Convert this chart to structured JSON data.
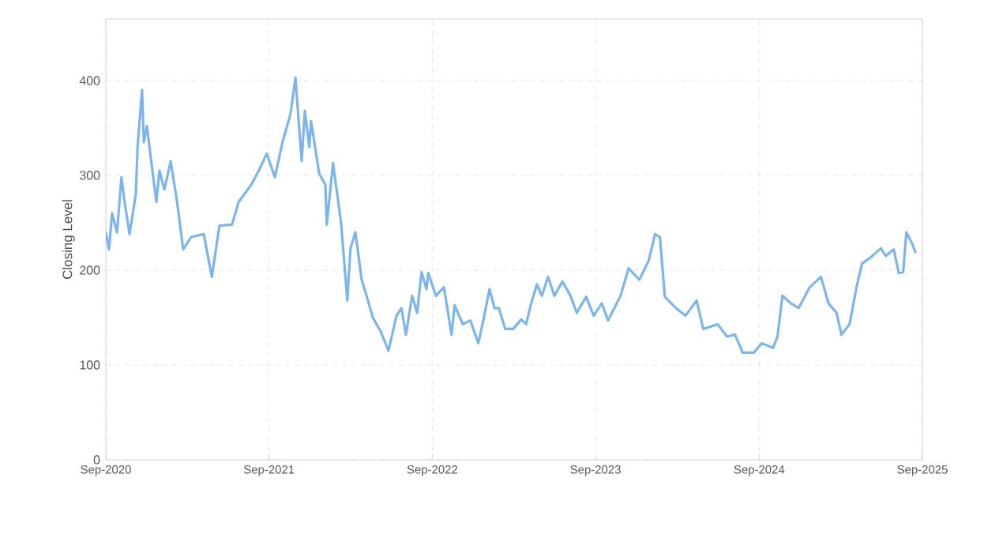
{
  "chart_data": {
    "type": "line",
    "ylabel": "Closing Level",
    "xlim": [
      "2020-09-01",
      "2025-09-01"
    ],
    "ylim": [
      0,
      465
    ],
    "xticks": [
      {
        "value": "2020-09-01",
        "label": "Sep-2020"
      },
      {
        "value": "2021-09-01",
        "label": "Sep-2021"
      },
      {
        "value": "2022-09-01",
        "label": "Sep-2022"
      },
      {
        "value": "2023-09-01",
        "label": "Sep-2023"
      },
      {
        "value": "2024-09-01",
        "label": "Sep-2024"
      },
      {
        "value": "2025-09-01",
        "label": "Sep-2025"
      }
    ],
    "yticks": [
      0,
      100,
      200,
      300,
      400
    ],
    "grid": true,
    "marker": "none",
    "line_style": "solid",
    "x": [
      "2020-09-01",
      "2020-09-08",
      "2020-09-15",
      "2020-09-26",
      "2020-10-06",
      "2020-10-13",
      "2020-10-24",
      "2020-11-07",
      "2020-11-11",
      "2020-11-21",
      "2020-11-25",
      "2020-12-02",
      "2020-12-12",
      "2020-12-23",
      "2020-12-30",
      "2021-01-10",
      "2021-01-24",
      "2021-02-07",
      "2021-02-21",
      "2021-03-11",
      "2021-04-08",
      "2021-04-26",
      "2021-05-13",
      "2021-06-10",
      "2021-06-25",
      "2021-07-23",
      "2021-08-09",
      "2021-08-27",
      "2021-09-14",
      "2021-10-01",
      "2021-10-19",
      "2021-10-30",
      "2021-11-13",
      "2021-11-20",
      "2021-11-30",
      "2021-12-04",
      "2021-12-22",
      "2022-01-05",
      "2022-01-08",
      "2022-01-22",
      "2022-02-09",
      "2022-02-23",
      "2022-03-02",
      "2022-03-13",
      "2022-03-27",
      "2022-04-07",
      "2022-04-21",
      "2022-05-09",
      "2022-05-26",
      "2022-06-13",
      "2022-06-24",
      "2022-07-04",
      "2022-07-18",
      "2022-07-29",
      "2022-08-08",
      "2022-08-19",
      "2022-08-23",
      "2022-09-09",
      "2022-09-27",
      "2022-10-14",
      "2022-10-21",
      "2022-11-08",
      "2022-11-25",
      "2022-12-13",
      "2022-12-24",
      "2023-01-07",
      "2023-01-18",
      "2023-01-28",
      "2023-02-11",
      "2023-03-01",
      "2023-03-19",
      "2023-03-30",
      "2023-04-09",
      "2023-04-23",
      "2023-05-04",
      "2023-05-18",
      "2023-06-01",
      "2023-06-19",
      "2023-07-07",
      "2023-07-21",
      "2023-08-11",
      "2023-08-28",
      "2023-09-15",
      "2023-09-29",
      "2023-10-27",
      "2023-11-14",
      "2023-12-08",
      "2023-12-29",
      "2024-01-12",
      "2024-01-23",
      "2024-02-03",
      "2024-02-28",
      "2024-03-20",
      "2024-04-14",
      "2024-04-29",
      "2024-05-31",
      "2024-06-21",
      "2024-07-09",
      "2024-07-26",
      "2024-08-20",
      "2024-09-07",
      "2024-10-02",
      "2024-10-12",
      "2024-10-23",
      "2024-11-11",
      "2024-11-28",
      "2024-12-23",
      "2025-01-17",
      "2025-02-03",
      "2025-02-21",
      "2025-03-04",
      "2025-03-22",
      "2025-04-08",
      "2025-04-19",
      "2025-05-07",
      "2025-05-31",
      "2025-06-11",
      "2025-06-29",
      "2025-07-10",
      "2025-07-20",
      "2025-07-27",
      "2025-08-10",
      "2025-08-17"
    ],
    "series": [
      {
        "color": "#7cb5ec",
        "values": [
          240,
          222,
          260,
          240,
          298,
          272,
          238,
          280,
          330,
          390,
          335,
          352,
          313,
          272,
          305,
          285,
          315,
          273,
          222,
          235,
          238,
          193,
          247,
          248,
          272,
          290,
          305,
          323,
          298,
          335,
          365,
          403,
          315,
          368,
          330,
          357,
          302,
          290,
          248,
          313,
          250,
          168,
          223,
          240,
          190,
          173,
          150,
          135,
          115,
          152,
          160,
          132,
          173,
          155,
          198,
          180,
          197,
          173,
          182,
          132,
          163,
          143,
          147,
          123,
          147,
          180,
          160,
          160,
          138,
          138,
          148,
          143,
          163,
          185,
          173,
          193,
          173,
          188,
          173,
          155,
          172,
          152,
          165,
          147,
          173,
          202,
          190,
          210,
          238,
          235,
          172,
          160,
          152,
          168,
          138,
          143,
          130,
          132,
          113,
          113,
          123,
          118,
          130,
          173,
          165,
          160,
          182,
          193,
          165,
          155,
          132,
          143,
          185,
          207,
          213,
          223,
          215,
          222,
          197,
          198,
          240,
          227,
          218
        ]
      }
    ]
  }
}
